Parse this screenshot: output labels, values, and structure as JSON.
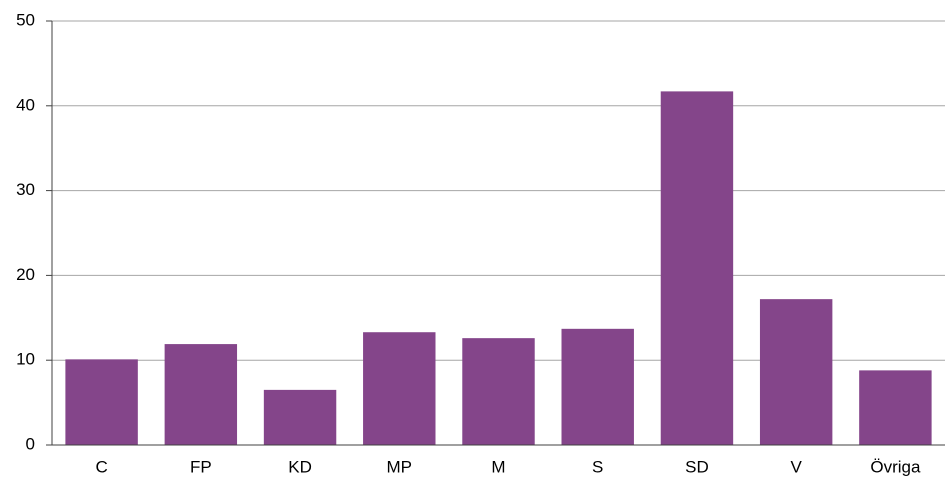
{
  "chart_data": {
    "type": "bar",
    "categories": [
      "C",
      "FP",
      "KD",
      "MP",
      "M",
      "S",
      "SD",
      "V",
      "Övriga"
    ],
    "values": [
      10.1,
      11.9,
      6.5,
      13.3,
      12.6,
      13.7,
      41.7,
      17.2,
      8.8
    ],
    "color": "#84458a",
    "ylim": [
      0,
      50
    ],
    "yticks": [
      0,
      10,
      20,
      30,
      40,
      50
    ],
    "grid": true
  }
}
